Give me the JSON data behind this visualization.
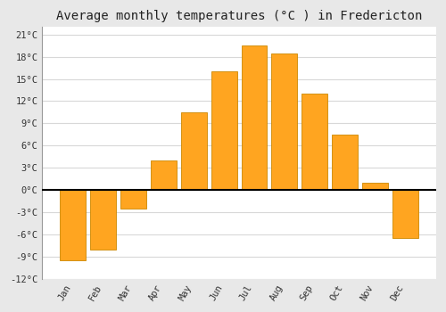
{
  "title": "Average monthly temperatures (°C ) in Fredericton",
  "months": [
    "Jan",
    "Feb",
    "Mar",
    "Apr",
    "May",
    "Jun",
    "Jul",
    "Aug",
    "Sep",
    "Oct",
    "Nov",
    "Dec"
  ],
  "values": [
    -9.5,
    -8.0,
    -2.5,
    4.0,
    10.5,
    16.0,
    19.5,
    18.5,
    13.0,
    7.5,
    1.0,
    -6.5
  ],
  "bar_color": "#FFA520",
  "bar_edge_color": "#CC8800",
  "bar_gradient_top": "#FFD060",
  "ylim": [
    -12,
    22
  ],
  "yticks": [
    -12,
    -9,
    -6,
    -3,
    0,
    3,
    6,
    9,
    12,
    15,
    18,
    21
  ],
  "ytick_labels": [
    "-12°C",
    "-9°C",
    "-6°C",
    "-3°C",
    "0°C",
    "3°C",
    "6°C",
    "9°C",
    "12°C",
    "15°C",
    "18°C",
    "21°C"
  ],
  "figure_bg_color": "#e8e8e8",
  "plot_bg_color": "#ffffff",
  "grid_color": "#d8d8d8",
  "zero_line_color": "#000000",
  "title_fontsize": 10,
  "tick_fontsize": 7.5,
  "bar_width": 0.85
}
